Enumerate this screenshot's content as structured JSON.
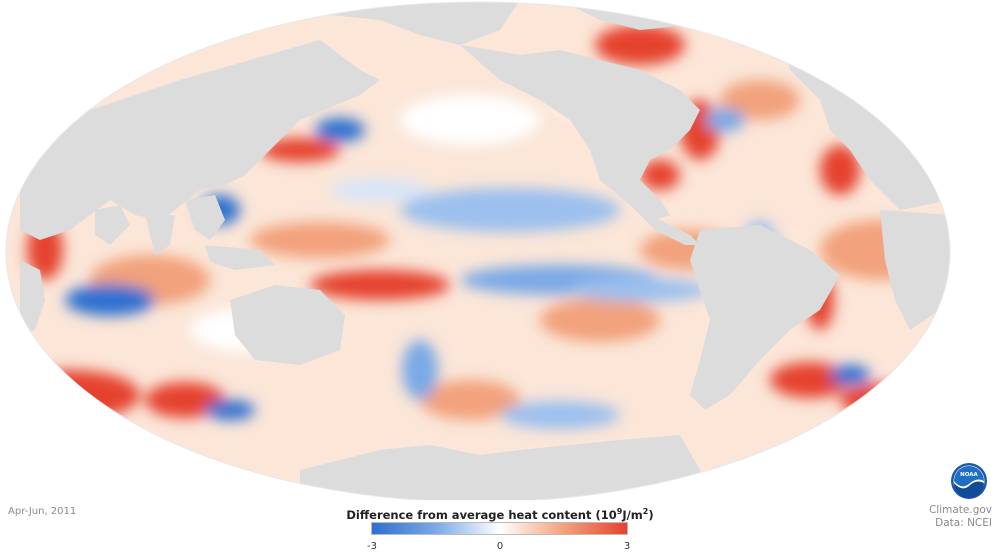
{
  "map": {
    "projection": "Mollweide",
    "period": "Apr-Jun, 2011",
    "variable": "Difference from average heat content",
    "land_color": "#dcdcdc",
    "ocean_base": "#fbe8dc"
  },
  "legend": {
    "title_text": "Difference from average heat content (",
    "unit_base": "10",
    "unit_exp": "9",
    "unit_rest": "J/m",
    "unit_exp2": "2",
    "title_close": ")",
    "min_label": "-3",
    "mid_label": "0",
    "max_label": "3",
    "colors": [
      "#2f6fd0",
      "#7aa9e6",
      "#ffffff",
      "#f2a27c",
      "#e5422f"
    ]
  },
  "credits": {
    "site": "Climate.gov",
    "source": "Data: NCEI"
  },
  "logo": {
    "icon": "noaa-logo-icon",
    "text": "NOAA"
  }
}
